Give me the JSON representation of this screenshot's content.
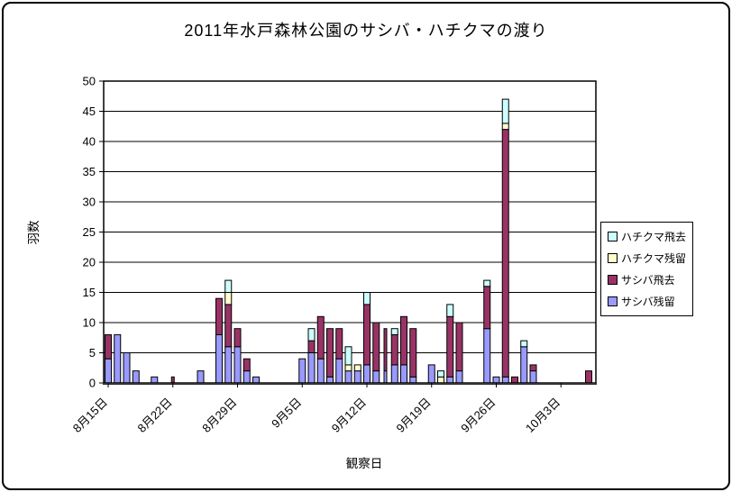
{
  "chart_data": {
    "type": "bar",
    "stacked": true,
    "title": "2011年水戸森林公園のサシバ・ハチクマの渡り",
    "xlabel": "観察日",
    "ylabel": "羽数",
    "ylim": [
      0,
      50
    ],
    "ytick_step": 5,
    "grid": true,
    "legend_position": "right",
    "x_tick_labels": [
      "8月15日",
      "8月22日",
      "8月29日",
      "9月5日",
      "9月12日",
      "9月19日",
      "9月26日",
      "10月3日"
    ],
    "x_tick_day_indices": [
      0,
      7,
      14,
      21,
      28,
      35,
      42,
      49
    ],
    "series_bottom_to_top": [
      {
        "name": "サシバ残留",
        "color": "#9999FF"
      },
      {
        "name": "サシバ飛去",
        "color": "#993366"
      },
      {
        "name": "ハチクマ残留",
        "color": "#FFFFCC"
      },
      {
        "name": "ハチクマ飛去",
        "color": "#CCFFFF"
      }
    ],
    "legend": [
      {
        "label": "ハチクマ飛去",
        "color": "#CCFFFF"
      },
      {
        "label": "ハチクマ残留",
        "color": "#FFFFCC"
      },
      {
        "label": "サシバ飛去",
        "color": "#993366"
      },
      {
        "label": "サシバ残留",
        "color": "#9999FF"
      }
    ],
    "bars": [
      {
        "date": "8月15日",
        "day": 0,
        "values": [
          4,
          4,
          0,
          0
        ]
      },
      {
        "date": "8月16日",
        "day": 1,
        "values": [
          8,
          0,
          0,
          0
        ]
      },
      {
        "date": "8月17日",
        "day": 2,
        "values": [
          5,
          0,
          0,
          0
        ]
      },
      {
        "date": "8月18日",
        "day": 3,
        "values": [
          2,
          0,
          0,
          0
        ]
      },
      {
        "date": "8月20日",
        "day": 5,
        "values": [
          1,
          0,
          0,
          0
        ]
      },
      {
        "date": "8月22日",
        "day": 7,
        "values": [
          0,
          1,
          0,
          0
        ],
        "thin": true
      },
      {
        "date": "8月25日",
        "day": 10,
        "values": [
          2,
          0,
          0,
          0
        ]
      },
      {
        "date": "8月27日",
        "day": 12,
        "values": [
          8,
          6,
          0,
          0
        ]
      },
      {
        "date": "8月28日",
        "day": 13,
        "values": [
          6,
          7,
          2,
          2
        ]
      },
      {
        "date": "8月29日",
        "day": 14,
        "values": [
          6,
          3,
          0,
          0
        ]
      },
      {
        "date": "8月30日",
        "day": 15,
        "values": [
          2,
          2,
          0,
          0
        ]
      },
      {
        "date": "8月31日",
        "day": 16,
        "values": [
          1,
          0,
          0,
          0
        ]
      },
      {
        "date": "9月5日",
        "day": 21,
        "values": [
          4,
          0,
          0,
          0
        ]
      },
      {
        "date": "9月6日",
        "day": 22,
        "values": [
          5,
          2,
          0,
          2
        ]
      },
      {
        "date": "9月7日",
        "day": 23,
        "values": [
          4,
          7,
          0,
          0
        ]
      },
      {
        "date": "9月8日",
        "day": 24,
        "values": [
          1,
          8,
          0,
          0
        ]
      },
      {
        "date": "9月9日",
        "day": 25,
        "values": [
          4,
          5,
          0,
          0
        ]
      },
      {
        "date": "9月10日",
        "day": 26,
        "values": [
          2,
          0,
          1,
          3
        ]
      },
      {
        "date": "9月11日",
        "day": 27,
        "values": [
          2,
          0,
          1,
          0
        ]
      },
      {
        "date": "9月12日",
        "day": 28,
        "values": [
          3,
          10,
          0,
          2
        ]
      },
      {
        "date": "9月13日",
        "day": 29,
        "values": [
          2,
          8,
          0,
          0
        ]
      },
      {
        "date": "9月14日",
        "day": 30,
        "values": [
          2,
          7,
          0,
          0
        ],
        "thin": true
      },
      {
        "date": "9月15日",
        "day": 31,
        "values": [
          3,
          5,
          0,
          1
        ]
      },
      {
        "date": "9月16日",
        "day": 32,
        "values": [
          3,
          8,
          0,
          0
        ]
      },
      {
        "date": "9月17日",
        "day": 33,
        "values": [
          1,
          8,
          0,
          0
        ]
      },
      {
        "date": "9月19日",
        "day": 35,
        "values": [
          3,
          0,
          0,
          0
        ]
      },
      {
        "date": "9月20日",
        "day": 36,
        "values": [
          0,
          0,
          1,
          1
        ]
      },
      {
        "date": "9月21日",
        "day": 37,
        "values": [
          1,
          10,
          0,
          2
        ]
      },
      {
        "date": "9月22日",
        "day": 38,
        "values": [
          2,
          8,
          0,
          0
        ]
      },
      {
        "date": "9月25日",
        "day": 41,
        "values": [
          9,
          7,
          0,
          1
        ]
      },
      {
        "date": "9月26日",
        "day": 42,
        "values": [
          1,
          0,
          0,
          0
        ]
      },
      {
        "date": "9月27日",
        "day": 43,
        "values": [
          1,
          41,
          1,
          4
        ]
      },
      {
        "date": "9月28日",
        "day": 44,
        "values": [
          0,
          1,
          0,
          0
        ]
      },
      {
        "date": "9月29日",
        "day": 45,
        "values": [
          6,
          0,
          0,
          1
        ]
      },
      {
        "date": "9月30日",
        "day": 46,
        "values": [
          2,
          1,
          0,
          0
        ]
      },
      {
        "date": "10月6日",
        "day": 52,
        "values": [
          0,
          2,
          0,
          0
        ]
      }
    ]
  },
  "style": {
    "plot_border_color": "#000000",
    "gridline_color": "#000000",
    "axis_line_color": "#333333",
    "bar_border_color": "#000000",
    "background": "#ffffff"
  }
}
